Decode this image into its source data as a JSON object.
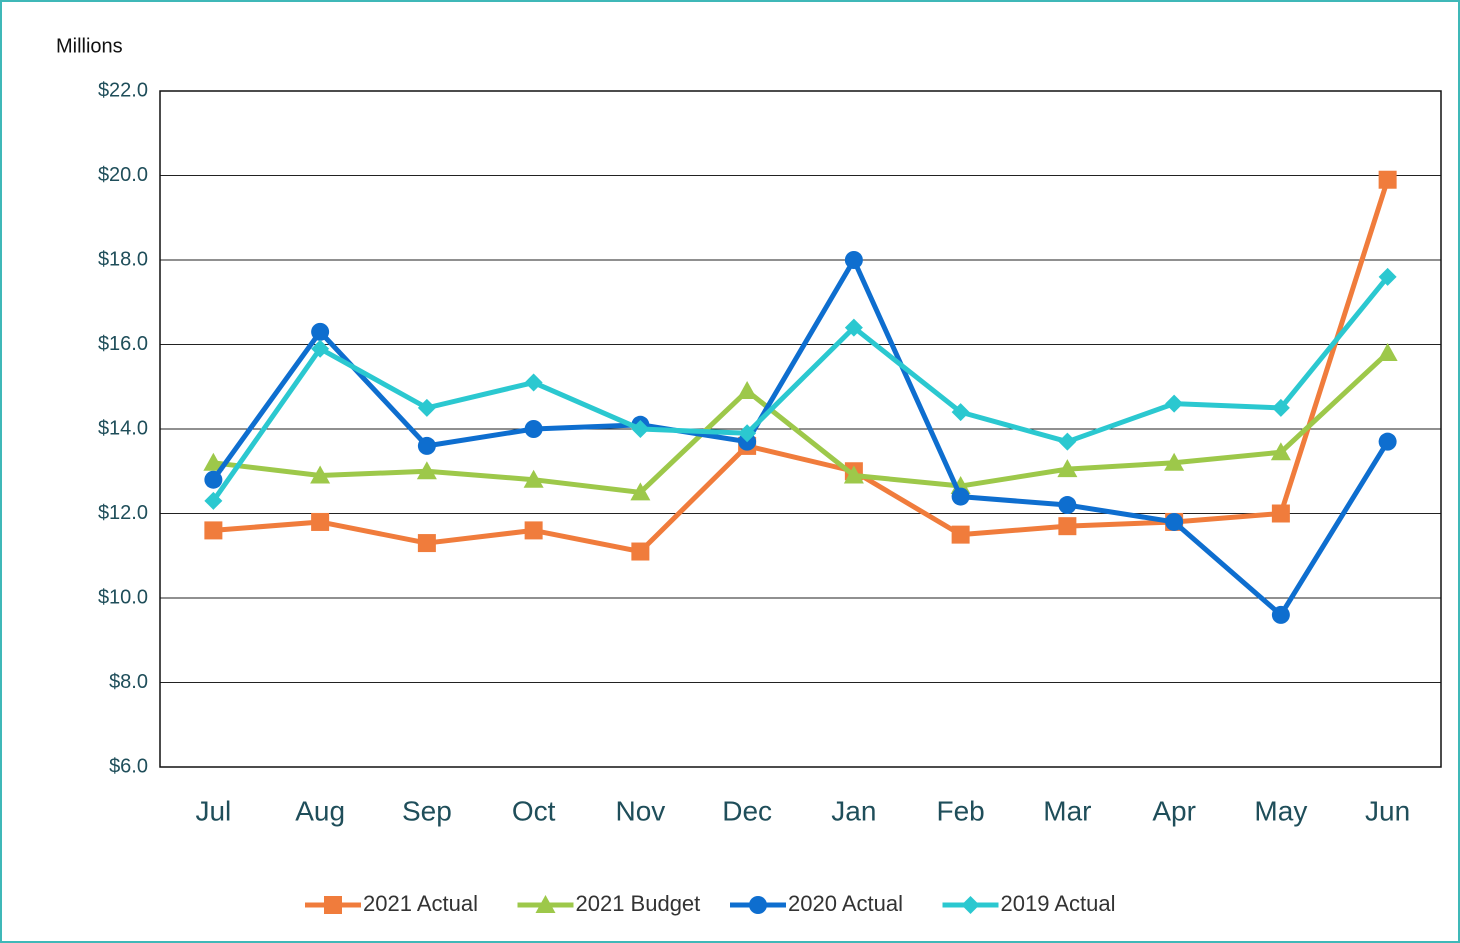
{
  "chart_data": {
    "type": "line",
    "y_axis_title": "Millions",
    "categories": [
      "Jul",
      "Aug",
      "Sep",
      "Oct",
      "Nov",
      "Dec",
      "Jan",
      "Feb",
      "Mar",
      "Apr",
      "May",
      "Jun"
    ],
    "series": [
      {
        "name": "2021 Actual",
        "color": "#f07c3c",
        "marker": "square",
        "values": [
          11.6,
          11.8,
          11.3,
          11.6,
          11.1,
          13.6,
          13.0,
          11.5,
          11.7,
          11.8,
          12.0,
          19.9
        ]
      },
      {
        "name": "2021 Budget",
        "color": "#9dc84a",
        "marker": "triangle",
        "values": [
          13.2,
          12.9,
          13.0,
          12.8,
          12.5,
          14.9,
          12.9,
          12.65,
          13.05,
          13.2,
          13.45,
          15.8
        ]
      },
      {
        "name": "2020 Actual",
        "color": "#0e6ecf",
        "marker": "circle",
        "values": [
          12.8,
          16.3,
          13.6,
          14.0,
          14.1,
          13.7,
          18.0,
          12.4,
          12.2,
          11.8,
          9.6,
          13.7
        ]
      },
      {
        "name": "2019 Actual",
        "color": "#2bc8d0",
        "marker": "diamond",
        "values": [
          12.3,
          15.9,
          14.5,
          15.1,
          14.0,
          13.9,
          16.4,
          14.4,
          13.7,
          14.6,
          14.5,
          17.6
        ]
      }
    ],
    "ylim": [
      6,
      22
    ],
    "yticks": [
      {
        "value": 6,
        "label": "$6.0"
      },
      {
        "value": 8,
        "label": "$8.0"
      },
      {
        "value": 10,
        "label": "$10.0"
      },
      {
        "value": 12,
        "label": "$12.0"
      },
      {
        "value": 14,
        "label": "$14.0"
      },
      {
        "value": 16,
        "label": "$16.0"
      },
      {
        "value": 18,
        "label": "$18.0"
      },
      {
        "value": 20,
        "label": "$20.0"
      },
      {
        "value": 22,
        "label": "$22.0"
      }
    ],
    "grid": true,
    "legend": "bottom"
  }
}
